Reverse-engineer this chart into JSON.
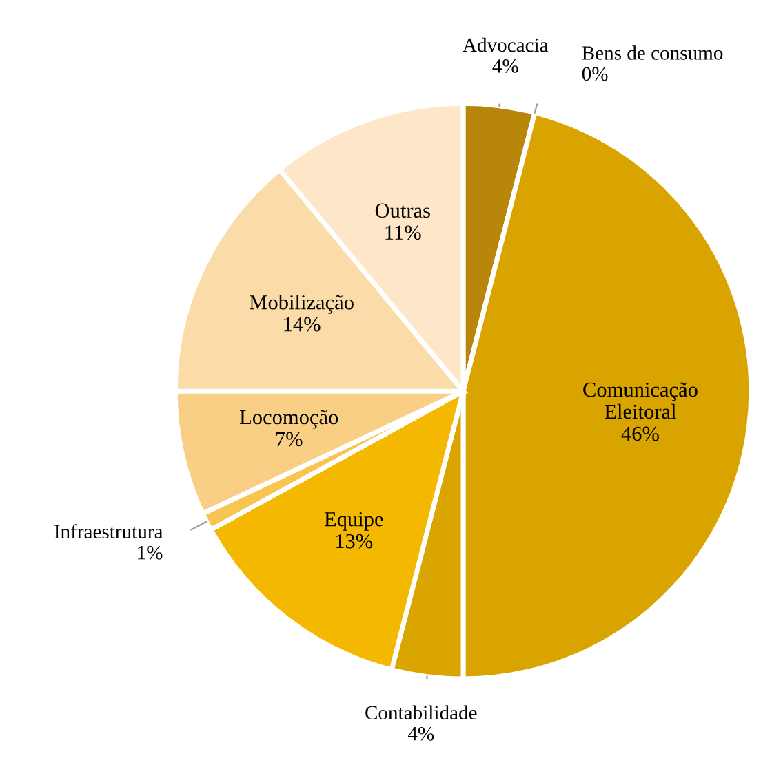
{
  "chart_data": {
    "type": "pie",
    "categories": [
      "Advocacia",
      "Bens de consumo",
      "Comunicação\nEleitoral",
      "Contabilidade",
      "Equipe",
      "Infraestrutura",
      "Locomoção",
      "Mobilização",
      "Outras"
    ],
    "values": [
      4,
      0,
      46,
      4,
      13,
      1,
      7,
      14,
      11
    ],
    "value_labels": [
      "4%",
      "0%",
      "46%",
      "4%",
      "13%",
      "1%",
      "7%",
      "14%",
      "11%"
    ],
    "colors": [
      "#b8860b",
      "#f3e2c0",
      "#d9a400",
      "#daa500",
      "#f5b800",
      "#f7c550",
      "#f9cf85",
      "#fbdba8",
      "#fde7c8"
    ],
    "legend": false
  }
}
